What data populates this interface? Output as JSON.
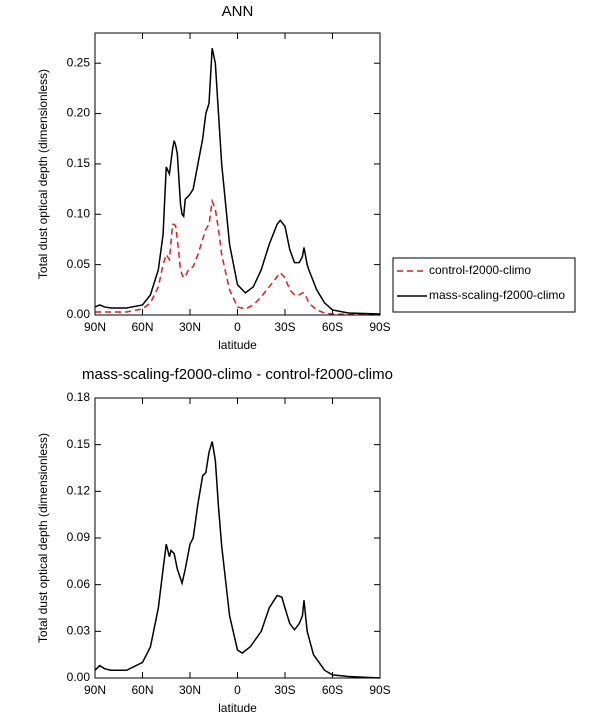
{
  "chart_data": [
    {
      "type": "line",
      "title": "ANN",
      "x": [
        90,
        87,
        84,
        80,
        70,
        60,
        55,
        50,
        47,
        45,
        43,
        41,
        40,
        39,
        38,
        36,
        35,
        34,
        33,
        31,
        30,
        28,
        25,
        22,
        20,
        18,
        16,
        14,
        12,
        10,
        5,
        0,
        -5,
        -10,
        -15,
        -20,
        -25,
        -27,
        -30,
        -33,
        -36,
        -39,
        -41,
        -42,
        -44,
        -45,
        -50,
        -55,
        -60,
        -70,
        -90
      ],
      "series": [
        {
          "name": "control-f2000-climo",
          "color": "#e41a1c",
          "line_style": "dashed",
          "values": [
            0.003,
            0.003,
            0.003,
            0.003,
            0.003,
            0.006,
            0.012,
            0.028,
            0.05,
            0.06,
            0.055,
            0.09,
            0.09,
            0.088,
            0.075,
            0.045,
            0.04,
            0.037,
            0.038,
            0.045,
            0.046,
            0.048,
            0.06,
            0.075,
            0.085,
            0.09,
            0.113,
            0.105,
            0.085,
            0.06,
            0.025,
            0.008,
            0.006,
            0.01,
            0.018,
            0.028,
            0.038,
            0.042,
            0.037,
            0.025,
            0.02,
            0.02,
            0.022,
            0.022,
            0.016,
            0.012,
            0.005,
            0.002,
            0.001,
            0.0005,
            0
          ]
        },
        {
          "name": "mass-scaling-f2000-climo",
          "color": "#000000",
          "line_style": "solid",
          "values": [
            0.008,
            0.01,
            0.008,
            0.007,
            0.007,
            0.01,
            0.02,
            0.045,
            0.08,
            0.147,
            0.14,
            0.165,
            0.173,
            0.168,
            0.16,
            0.11,
            0.1,
            0.098,
            0.115,
            0.118,
            0.12,
            0.125,
            0.15,
            0.175,
            0.2,
            0.21,
            0.265,
            0.25,
            0.2,
            0.15,
            0.07,
            0.03,
            0.022,
            0.028,
            0.045,
            0.07,
            0.09,
            0.094,
            0.088,
            0.065,
            0.052,
            0.052,
            0.058,
            0.067,
            0.05,
            0.045,
            0.025,
            0.012,
            0.005,
            0.002,
            0.001
          ]
        }
      ],
      "xlabel": "latitude",
      "ylabel": "Total dust optical depth (dimensionless)",
      "xlim": [
        90,
        -90
      ],
      "xticks": [
        {
          "value": 90,
          "label": "90N"
        },
        {
          "value": 60,
          "label": "60N"
        },
        {
          "value": 30,
          "label": "30N"
        },
        0,
        {
          "value": -30,
          "label": "30S"
        },
        {
          "value": -60,
          "label": "60S"
        },
        {
          "value": -90,
          "label": "90S"
        }
      ],
      "ylim": [
        0,
        0.28
      ],
      "yticks": [
        {
          "value": 0,
          "label": "0.00"
        },
        {
          "value": 0.05,
          "label": "0.05"
        },
        {
          "value": 0.1,
          "label": "0.10"
        },
        {
          "value": 0.15,
          "label": "0.15"
        },
        {
          "value": 0.2,
          "label": "0.20"
        },
        {
          "value": 0.25,
          "label": "0.25"
        }
      ]
    },
    {
      "type": "line",
      "title": "mass-scaling-f2000-climo - control-f2000-climo",
      "x": [
        90,
        87,
        84,
        80,
        70,
        60,
        55,
        50,
        47,
        45,
        43,
        42,
        40,
        38,
        35,
        33,
        30,
        28,
        25,
        22,
        20,
        18,
        16,
        14,
        12,
        10,
        5,
        0,
        -3,
        -8,
        -15,
        -20,
        -25,
        -28,
        -30,
        -33,
        -36,
        -39,
        -41,
        -42,
        -44,
        -48,
        -55,
        -60,
        -70,
        -90
      ],
      "values": [
        0.005,
        0.008,
        0.006,
        0.005,
        0.005,
        0.01,
        0.02,
        0.045,
        0.07,
        0.086,
        0.078,
        0.082,
        0.08,
        0.07,
        0.061,
        0.07,
        0.086,
        0.09,
        0.112,
        0.13,
        0.132,
        0.145,
        0.152,
        0.14,
        0.11,
        0.085,
        0.04,
        0.018,
        0.016,
        0.02,
        0.03,
        0.045,
        0.053,
        0.052,
        0.045,
        0.035,
        0.031,
        0.035,
        0.04,
        0.05,
        0.03,
        0.015,
        0.005,
        0.002,
        0.001,
        0
      ],
      "color": "#000000",
      "xlabel": "latitude",
      "ylabel": "Total dust optical depth (dimensionless)",
      "xlim": [
        90,
        -90
      ],
      "xticks": [
        {
          "value": 90,
          "label": "90N"
        },
        {
          "value": 60,
          "label": "60N"
        },
        {
          "value": 30,
          "label": "30N"
        },
        0,
        {
          "value": -30,
          "label": "30S"
        },
        {
          "value": -60,
          "label": "60S"
        },
        {
          "value": -90,
          "label": "90S"
        }
      ],
      "ylim": [
        0,
        0.18
      ],
      "yticks": [
        {
          "value": 0,
          "label": "0.00"
        },
        {
          "value": 0.03,
          "label": "0.03"
        },
        {
          "value": 0.06,
          "label": "0.06"
        },
        {
          "value": 0.09,
          "label": "0.09"
        },
        {
          "value": 0.12,
          "label": "0.12"
        },
        {
          "value": 0.15,
          "label": "0.15"
        },
        {
          "value": 0.18,
          "label": "0.18"
        }
      ]
    }
  ]
}
